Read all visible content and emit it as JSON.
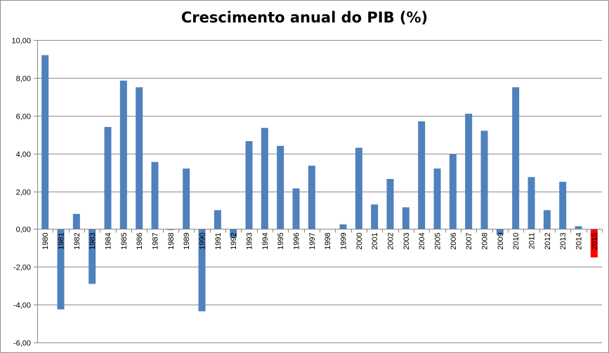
{
  "chart_data": {
    "type": "bar",
    "title": "Crescimento anual do PIB (%)",
    "xlabel": "",
    "ylabel": "",
    "ylim": [
      -6,
      10
    ],
    "yticks": [
      10,
      8,
      6,
      4,
      2,
      0,
      -2,
      -4,
      -6
    ],
    "ytick_labels": [
      "10,00",
      "8,00",
      "6,00",
      "4,00",
      "2,00",
      "0,00",
      "-2,00",
      "-4,00",
      "-6,00"
    ],
    "grid": true,
    "legend": "none",
    "categories": [
      "1980",
      "1981",
      "1982",
      "1983",
      "1984",
      "1985",
      "1986",
      "1987",
      "1988",
      "1989",
      "1990",
      "1991",
      "1992",
      "1993",
      "1994",
      "1995",
      "1996",
      "1997",
      "1998",
      "1999",
      "2000",
      "2001",
      "2002",
      "2003",
      "2004",
      "2005",
      "2006",
      "2007",
      "2008",
      "2009",
      "2010",
      "2011",
      "2012",
      "2013",
      "2014",
      "2015"
    ],
    "values": [
      9.2,
      -4.25,
      0.8,
      -2.9,
      5.4,
      7.85,
      7.5,
      3.55,
      -0.05,
      3.2,
      -4.35,
      1.0,
      -0.45,
      4.65,
      5.35,
      4.4,
      2.15,
      3.35,
      0.0,
      0.25,
      4.3,
      1.3,
      2.65,
      1.15,
      5.7,
      3.2,
      3.95,
      6.1,
      5.2,
      -0.3,
      7.5,
      2.75,
      1.0,
      2.5,
      0.15,
      -1.5
    ],
    "colors": {
      "default": "#4f81bd",
      "highlight": "#ff0000",
      "grid": "#8c8c8c",
      "axis": "#868686"
    },
    "highlight_category": "2015"
  }
}
